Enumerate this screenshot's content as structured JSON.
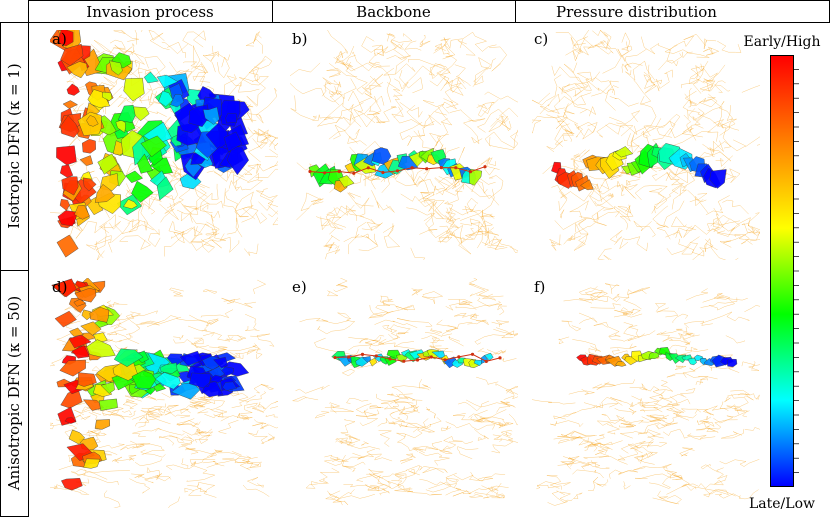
{
  "columns": [
    {
      "label": "Invasion process"
    },
    {
      "label": "Backbone"
    },
    {
      "label": "Pressure distribution"
    }
  ],
  "rows": [
    {
      "label": "Isotropic DFN (κ = 1)"
    },
    {
      "label": "Anisotropic DFN (κ = 50)"
    }
  ],
  "panels": [
    {
      "id": "a)",
      "row": 0,
      "col": 0,
      "kind": "invasion"
    },
    {
      "id": "b)",
      "row": 0,
      "col": 1,
      "kind": "backbone"
    },
    {
      "id": "c)",
      "row": 0,
      "col": 2,
      "kind": "pressure"
    },
    {
      "id": "d)",
      "row": 1,
      "col": 0,
      "kind": "invasion"
    },
    {
      "id": "e)",
      "row": 1,
      "col": 1,
      "kind": "backbone"
    },
    {
      "id": "f)",
      "row": 1,
      "col": 2,
      "kind": "pressure"
    }
  ],
  "colorbar": {
    "top_label": "Early/High",
    "bottom_label": "Late/Low",
    "colors": [
      "#ff0000",
      "#ff8000",
      "#ffff00",
      "#00ff00",
      "#00ffff",
      "#0000ff"
    ]
  },
  "network_color": "#f5a623"
}
